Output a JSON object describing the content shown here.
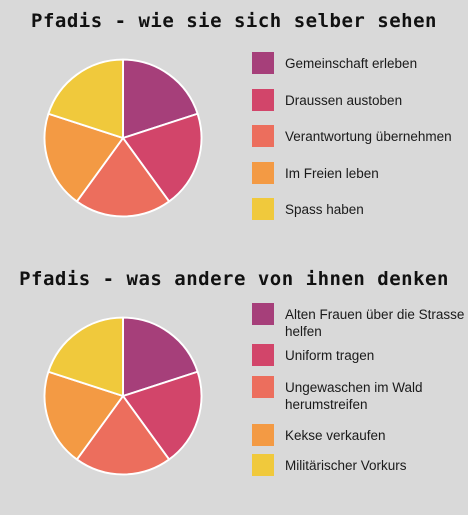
{
  "colors": {
    "background": "#d9d9d9",
    "slices": [
      "#a63f7a",
      "#d2456a",
      "#ec6e5d",
      "#f39a44",
      "#f0c93c"
    ]
  },
  "chart_data": [
    {
      "type": "pie",
      "title": "Pfadis - wie sie sich selber sehen",
      "categories": [
        "Gemeinschaft erleben",
        "Draussen austoben",
        "Verantwortung übernehmen",
        "Im Freien leben",
        "Spass haben"
      ],
      "values": [
        20,
        20,
        20,
        20,
        20
      ],
      "legend_position": "right"
    },
    {
      "type": "pie",
      "title": "Pfadis - was andere von ihnen denken",
      "categories": [
        "Alten Frauen über die Strasse helfen",
        "Uniform tragen",
        "Ungewaschen im Wald herumstreifen",
        "Kekse verkaufen",
        "Militärischer Vorkurs"
      ],
      "values": [
        20,
        20,
        20,
        20,
        20
      ],
      "legend_position": "right"
    }
  ]
}
